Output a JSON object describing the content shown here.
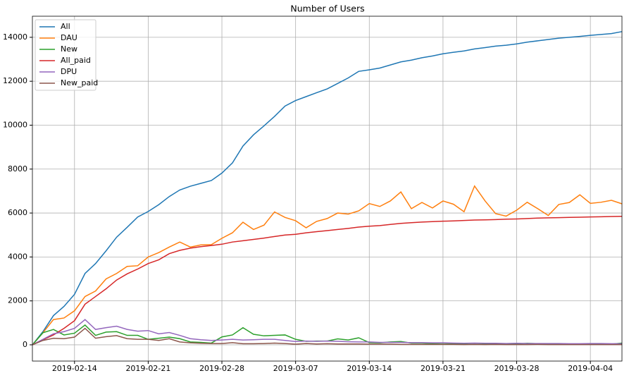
{
  "chart_data": {
    "type": "line",
    "title": "Number of Users",
    "x": [
      "2019-02-10",
      "2019-02-11",
      "2019-02-12",
      "2019-02-13",
      "2019-02-14",
      "2019-02-15",
      "2019-02-16",
      "2019-02-17",
      "2019-02-18",
      "2019-02-19",
      "2019-02-20",
      "2019-02-21",
      "2019-02-22",
      "2019-02-23",
      "2019-02-24",
      "2019-02-25",
      "2019-02-26",
      "2019-02-27",
      "2019-02-28",
      "2019-03-01",
      "2019-03-02",
      "2019-03-03",
      "2019-03-04",
      "2019-03-05",
      "2019-03-06",
      "2019-03-07",
      "2019-03-08",
      "2019-03-09",
      "2019-03-10",
      "2019-03-11",
      "2019-03-12",
      "2019-03-13",
      "2019-03-14",
      "2019-03-15",
      "2019-03-16",
      "2019-03-17",
      "2019-03-18",
      "2019-03-19",
      "2019-03-20",
      "2019-03-21",
      "2019-03-22",
      "2019-03-23",
      "2019-03-24",
      "2019-03-25",
      "2019-03-26",
      "2019-03-27",
      "2019-03-28",
      "2019-03-29",
      "2019-03-30",
      "2019-03-31",
      "2019-04-01",
      "2019-04-02",
      "2019-04-03",
      "2019-04-04",
      "2019-04-05",
      "2019-04-06",
      "2019-04-07"
    ],
    "series": [
      {
        "name": "All",
        "color": "#1f77b4",
        "values": [
          0,
          600,
          1330,
          1750,
          2300,
          3250,
          3700,
          4280,
          4900,
          5350,
          5820,
          6070,
          6380,
          6750,
          7050,
          7220,
          7350,
          7480,
          7820,
          8280,
          9050,
          9560,
          9970,
          10400,
          10870,
          11120,
          11300,
          11480,
          11650,
          11900,
          12150,
          12450,
          12520,
          12600,
          12740,
          12880,
          12960,
          13070,
          13150,
          13250,
          13320,
          13380,
          13470,
          13530,
          13600,
          13640,
          13700,
          13780,
          13840,
          13900,
          13960,
          14000,
          14040,
          14090,
          14130,
          14170,
          14260
        ]
      },
      {
        "name": "DAU",
        "color": "#ff7f0e",
        "values": [
          0,
          550,
          1150,
          1220,
          1550,
          2200,
          2450,
          3000,
          3250,
          3570,
          3600,
          4000,
          4200,
          4450,
          4680,
          4450,
          4550,
          4560,
          4850,
          5100,
          5580,
          5250,
          5450,
          6050,
          5800,
          5650,
          5330,
          5620,
          5750,
          6000,
          5950,
          6100,
          6430,
          6300,
          6550,
          6960,
          6200,
          6480,
          6230,
          6550,
          6400,
          6060,
          7230,
          6550,
          5970,
          5860,
          6130,
          6490,
          6200,
          5890,
          6390,
          6480,
          6830,
          6440,
          6490,
          6580,
          6420
        ]
      },
      {
        "name": "New",
        "color": "#2ca02c",
        "values": [
          0,
          550,
          700,
          450,
          530,
          900,
          430,
          580,
          600,
          430,
          430,
          250,
          300,
          350,
          280,
          130,
          110,
          80,
          360,
          450,
          780,
          480,
          410,
          430,
          450,
          250,
          160,
          170,
          170,
          270,
          220,
          320,
          100,
          90,
          130,
          150,
          80,
          80,
          60,
          80,
          50,
          50,
          70,
          50,
          50,
          50,
          40,
          70,
          50,
          50,
          40,
          40,
          30,
          40,
          40,
          30,
          80
        ]
      },
      {
        "name": "All_paid",
        "color": "#d62728",
        "values": [
          0,
          230,
          450,
          750,
          1100,
          1850,
          2200,
          2550,
          2950,
          3230,
          3450,
          3700,
          3870,
          4150,
          4300,
          4400,
          4470,
          4520,
          4580,
          4680,
          4740,
          4800,
          4860,
          4930,
          5000,
          5030,
          5100,
          5150,
          5200,
          5250,
          5300,
          5360,
          5400,
          5430,
          5480,
          5530,
          5560,
          5590,
          5610,
          5630,
          5640,
          5660,
          5680,
          5690,
          5700,
          5720,
          5730,
          5750,
          5770,
          5780,
          5790,
          5800,
          5810,
          5820,
          5830,
          5840,
          5850
        ]
      },
      {
        "name": "DPU",
        "color": "#9467bd",
        "values": [
          0,
          250,
          500,
          600,
          750,
          1150,
          700,
          780,
          850,
          700,
          620,
          650,
          500,
          560,
          430,
          280,
          230,
          200,
          220,
          250,
          220,
          230,
          250,
          250,
          200,
          150,
          170,
          160,
          170,
          160,
          140,
          130,
          130,
          110,
          110,
          110,
          100,
          100,
          90,
          90,
          80,
          70,
          80,
          70,
          70,
          60,
          70,
          60,
          60,
          60,
          60,
          50,
          50,
          60,
          60,
          50,
          50
        ]
      },
      {
        "name": "New_paid",
        "color": "#8c564b",
        "values": [
          0,
          200,
          300,
          280,
          350,
          750,
          300,
          370,
          420,
          280,
          250,
          250,
          200,
          280,
          130,
          90,
          70,
          60,
          60,
          100,
          50,
          50,
          60,
          80,
          60,
          30,
          60,
          40,
          50,
          40,
          40,
          40,
          30,
          30,
          30,
          20,
          20,
          20,
          20,
          20,
          20,
          10,
          20,
          10,
          20,
          10,
          10,
          10,
          20,
          10,
          10,
          10,
          10,
          10,
          10,
          10,
          10
        ]
      }
    ],
    "xlim": [
      "2019-02-10",
      "2019-04-07"
    ],
    "xticks": [
      "2019-02-14",
      "2019-02-21",
      "2019-02-28",
      "2019-03-07",
      "2019-03-14",
      "2019-03-21",
      "2019-03-28",
      "2019-04-04"
    ],
    "ylim": [
      -740,
      14960
    ],
    "yticks": [
      0,
      2000,
      4000,
      6000,
      8000,
      10000,
      12000,
      14000
    ],
    "grid": true,
    "legend": "upper left"
  }
}
